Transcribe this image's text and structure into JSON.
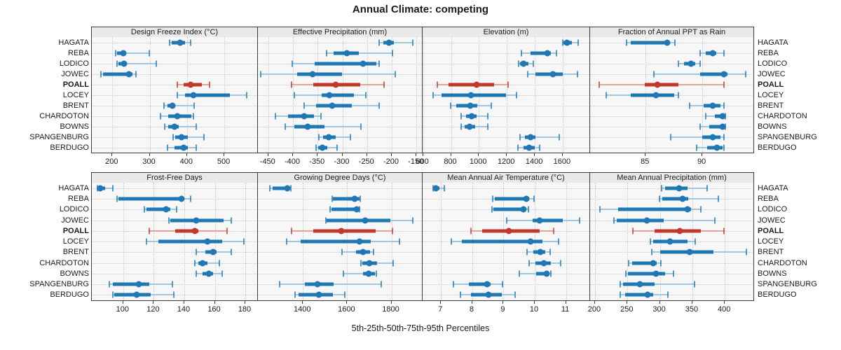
{
  "title": "Annual Climate: competing",
  "caption": "5th-25th-50th-75th-95th Percentiles",
  "percentile_labels": [
    "5th",
    "25th",
    "50th",
    "75th",
    "95th"
  ],
  "sites": [
    "HAGATA",
    "REBA",
    "LODICO",
    "JOWEC",
    "POALL",
    "LOCEY",
    "BRENT",
    "CHARDOTON",
    "BOWNS",
    "SPANGENBURG",
    "BERDUGO"
  ],
  "highlight_site": "POALL",
  "colors": {
    "series": "#1f77b4",
    "series_light": "#9fc7e2",
    "highlight": "#c0392b",
    "highlight_light": "#e0a49c",
    "panel_bg": "#f7f7f7",
    "strip_bg": "#e9e9e9",
    "border": "#3c3c3c",
    "grid": "#c8c8c8",
    "text": "#1a1a1a"
  },
  "chart_data": {
    "type": "dotplot-interval",
    "note": "values are [5th,25th,50th,75th,95th] percentiles per site",
    "grid": "dotted",
    "panels": [
      {
        "title": "Design Freeze Index (°C)",
        "row": 0,
        "col": 0,
        "xmin": 145,
        "xmax": 588,
        "ticks": [
          200,
          300,
          400,
          500
        ],
        "values": {
          "HAGATA": [
            353,
            358,
            381,
            395,
            409
          ],
          "REBA": [
            208,
            212,
            229,
            234,
            298
          ],
          "LODICO": [
            212,
            217,
            232,
            235,
            317
          ],
          "JOWEC": [
            170,
            175,
            244,
            254,
            263
          ],
          "POALL": [
            374,
            390,
            410,
            440,
            461
          ],
          "LOCEY": [
            374,
            394,
            418,
            515,
            559
          ],
          "BRENT": [
            338,
            347,
            361,
            369,
            419
          ],
          "CHARDOTON": [
            329,
            350,
            373,
            412,
            417
          ],
          "BOWNS": [
            341,
            350,
            367,
            378,
            425
          ],
          "SPANGENBURG": [
            362,
            369,
            386,
            403,
            445
          ],
          "BERDUGO": [
            347,
            366,
            391,
            403,
            425
          ]
        }
      },
      {
        "title": "Effective Precipitation (mm)",
        "row": 0,
        "col": 1,
        "xmin": -471,
        "xmax": -139,
        "ticks": [
          -450,
          -400,
          -350,
          -300,
          -250,
          -200,
          -150
        ],
        "values": {
          "HAGATA": [
            -225,
            -217,
            -206,
            -196,
            -157
          ],
          "REBA": [
            -332,
            -318,
            -291,
            -266,
            -198
          ],
          "LODICO": [
            -401,
            -356,
            -258,
            -231,
            -226
          ],
          "JOWEC": [
            -466,
            -391,
            -361,
            -300,
            -193
          ],
          "POALL": [
            -403,
            -359,
            -314,
            -264,
            -216
          ],
          "LOCEY": [
            -397,
            -342,
            -326,
            -277,
            -253
          ],
          "BRENT": [
            -378,
            -353,
            -320,
            -281,
            -226
          ],
          "CHARDOTON": [
            -436,
            -410,
            -377,
            -358,
            -344
          ],
          "BOWNS": [
            -416,
            -398,
            -371,
            -337,
            -262
          ],
          "SPANGENBURG": [
            -347,
            -339,
            -328,
            -314,
            -284
          ],
          "BERDUGO": [
            -354,
            -349,
            -341,
            -330,
            -311
          ]
        }
      },
      {
        "title": "Elevation (m)",
        "row": 0,
        "col": 2,
        "xmin": 597,
        "xmax": 1791,
        "ticks": [
          600,
          800,
          1000,
          1200,
          1400,
          1600
        ],
        "values": {
          "HAGATA": [
            1600,
            1607,
            1632,
            1667,
            1712
          ],
          "REBA": [
            1303,
            1367,
            1490,
            1513,
            1557
          ],
          "LODICO": [
            1283,
            1295,
            1320,
            1357,
            1387
          ],
          "JOWEC": [
            1350,
            1403,
            1528,
            1600,
            1707
          ],
          "POALL": [
            700,
            783,
            983,
            1107,
            1207
          ],
          "LOCEY": [
            670,
            733,
            942,
            1192,
            1267
          ],
          "BRENT": [
            795,
            837,
            937,
            987,
            1090
          ],
          "CHARDOTON": [
            873,
            907,
            950,
            983,
            1065
          ],
          "BOWNS": [
            873,
            900,
            933,
            973,
            1065
          ],
          "SPANGENBURG": [
            1295,
            1328,
            1367,
            1407,
            1573
          ],
          "BERDUGO": [
            1278,
            1320,
            1358,
            1400,
            1437
          ]
        }
      },
      {
        "title": "Fraction of Annual PPT as Rain",
        "row": 0,
        "col": 3,
        "xmin": 80.1,
        "xmax": 94.5,
        "ticks": [
          85,
          90
        ],
        "values": {
          "HAGATA": [
            83.3,
            83.7,
            86.9,
            87.1,
            87.6
          ],
          "REBA": [
            89.8,
            90.3,
            90.9,
            91.2,
            91.9
          ],
          "LODICO": [
            87.9,
            88.4,
            89.0,
            89.4,
            89.8
          ],
          "JOWEC": [
            85.7,
            89.8,
            91.9,
            92.2,
            93.8
          ],
          "POALL": [
            80.9,
            84.9,
            86.0,
            87.9,
            91.9
          ],
          "LOCEY": [
            81.5,
            83.7,
            85.9,
            87.5,
            87.9
          ],
          "BRENT": [
            88.9,
            90.1,
            90.9,
            91.6,
            91.9
          ],
          "CHARDOTON": [
            90.3,
            91.1,
            91.8,
            91.9,
            92.0
          ],
          "BOWNS": [
            89.8,
            90.6,
            91.8,
            91.9,
            92.0
          ],
          "SPANGENBURG": [
            87.2,
            90.0,
            90.9,
            91.6,
            91.9
          ],
          "BERDUGO": [
            89.5,
            90.4,
            91.3,
            91.8,
            91.9
          ]
        }
      },
      {
        "title": "Frost-Free Days",
        "row": 1,
        "col": 0,
        "xmin": 79.4,
        "xmax": 187.8,
        "ticks": [
          100,
          120,
          140,
          160,
          180
        ],
        "values": {
          "HAGATA": [
            83,
            84,
            85,
            88,
            93
          ],
          "REBA": [
            96,
            97,
            138,
            139,
            144
          ],
          "LODICO": [
            114,
            115,
            128,
            131,
            135
          ],
          "JOWEC": [
            130,
            131,
            148,
            166,
            171
          ],
          "POALL": [
            117,
            134,
            147,
            149,
            168
          ],
          "LOCEY": [
            115,
            123,
            155,
            165,
            179
          ],
          "BRENT": [
            148,
            154,
            159,
            161,
            171
          ],
          "CHARDOTON": [
            147,
            149,
            152,
            155,
            163
          ],
          "BOWNS": [
            148,
            152,
            156,
            159,
            165
          ],
          "SPANGENBURG": [
            91,
            93,
            110,
            117,
            132
          ],
          "BERDUGO": [
            93,
            94,
            109,
            118,
            133
          ]
        }
      },
      {
        "title": "Growing Degree Days (°C)",
        "row": 1,
        "col": 1,
        "xmin": 1196,
        "xmax": 1938,
        "ticks": [
          1400,
          1600,
          1800
        ],
        "values": {
          "HAGATA": [
            1251,
            1261,
            1328,
            1335,
            1346
          ],
          "REBA": [
            1532,
            1536,
            1632,
            1655,
            1658
          ],
          "LODICO": [
            1524,
            1529,
            1644,
            1650,
            1656
          ],
          "JOWEC": [
            1503,
            1508,
            1680,
            1797,
            1897
          ],
          "POALL": [
            1349,
            1446,
            1573,
            1730,
            1805
          ],
          "LOCEY": [
            1326,
            1390,
            1655,
            1706,
            1835
          ],
          "BRENT": [
            1577,
            1639,
            1672,
            1703,
            1719
          ],
          "CHARDOTON": [
            1662,
            1667,
            1701,
            1735,
            1809
          ],
          "BOWNS": [
            1584,
            1670,
            1698,
            1726,
            1732
          ],
          "SPANGENBURG": [
            1293,
            1407,
            1464,
            1539,
            1755
          ],
          "BERDUGO": [
            1363,
            1381,
            1473,
            1537,
            1589
          ]
        }
      },
      {
        "title": "Mean Annual Air Temperature (°C)",
        "row": 1,
        "col": 2,
        "xmin": 6.41,
        "xmax": 11.75,
        "ticks": [
          7,
          8,
          9,
          10,
          11
        ],
        "values": {
          "HAGATA": [
            6.74,
            6.76,
            6.83,
            6.95,
            7.1
          ],
          "REBA": [
            8.66,
            8.71,
            9.73,
            9.81,
            9.98
          ],
          "LODICO": [
            8.62,
            8.68,
            9.63,
            9.7,
            9.79
          ],
          "JOWEC": [
            9.11,
            9.94,
            10.15,
            10.9,
            11.43
          ],
          "POALL": [
            7.95,
            8.32,
            9.16,
            10.15,
            10.6
          ],
          "LOCEY": [
            7.34,
            7.67,
            9.87,
            10.24,
            10.76
          ],
          "BRENT": [
            9.76,
            9.96,
            10.17,
            10.33,
            10.5
          ],
          "CHARDOTON": [
            9.81,
            10.02,
            10.29,
            10.52,
            10.84
          ],
          "BOWNS": [
            9.51,
            10.05,
            10.37,
            10.46,
            10.52
          ],
          "SPANGENBURG": [
            7.39,
            7.89,
            8.47,
            8.58,
            8.97
          ],
          "BERDUGO": [
            7.62,
            7.95,
            8.51,
            8.94,
            9.36
          ]
        }
      },
      {
        "title": "Mean Annual Precipitation (mm)",
        "row": 1,
        "col": 3,
        "xmin": 192.5,
        "xmax": 444,
        "ticks": [
          200,
          250,
          300,
          350,
          400
        ],
        "values": {
          "HAGATA": [
            303,
            308,
            330,
            342,
            373
          ],
          "REBA": [
            299,
            304,
            335,
            344,
            390
          ],
          "LODICO": [
            208,
            236,
            343,
            348,
            363
          ],
          "JOWEC": [
            229,
            233,
            280,
            306,
            385
          ],
          "POALL": [
            258,
            292,
            331,
            363,
            399
          ],
          "LOCEY": [
            285,
            290,
            316,
            343,
            354
          ],
          "BRENT": [
            287,
            300,
            346,
            382,
            433
          ],
          "CHARDOTON": [
            252,
            257,
            290,
            295,
            301
          ],
          "BOWNS": [
            247,
            251,
            294,
            308,
            321
          ],
          "SPANGENBURG": [
            239,
            243,
            269,
            292,
            353
          ],
          "BERDUGO": [
            239,
            246,
            281,
            290,
            312
          ]
        }
      }
    ]
  }
}
